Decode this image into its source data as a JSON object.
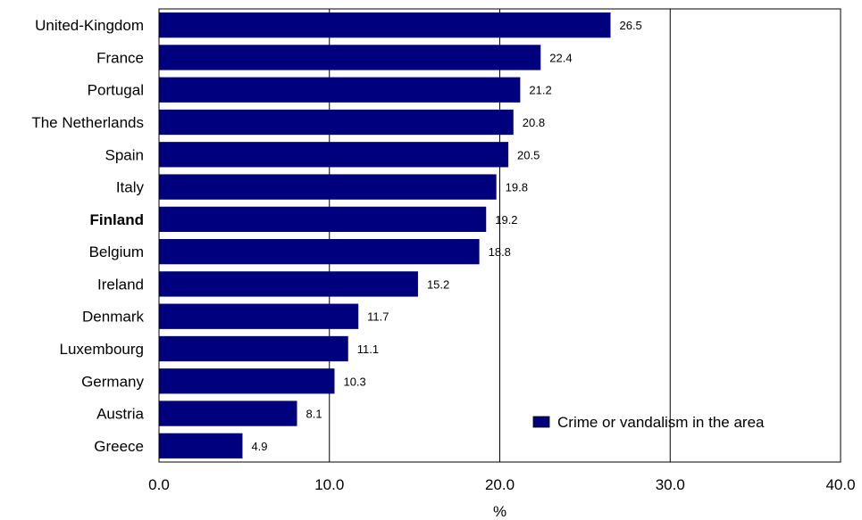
{
  "chart_data": {
    "type": "bar",
    "orientation": "horizontal",
    "categories": [
      "United-Kingdom",
      "France",
      "Portugal",
      "The Netherlands",
      "Spain",
      "Italy",
      "Finland",
      "Belgium",
      "Ireland",
      "Denmark",
      "Luxembourg",
      "Germany",
      "Austria",
      "Greece"
    ],
    "highlight_category": "Finland",
    "series": [
      {
        "name": "Crime or vandalism in the area",
        "color": "#00007f",
        "values": [
          26.5,
          22.4,
          21.2,
          20.8,
          20.5,
          19.8,
          19.2,
          18.8,
          15.2,
          11.7,
          11.1,
          10.3,
          8.1,
          4.9
        ]
      }
    ],
    "value_labels": [
      "26.5",
      "22.4",
      "21.2",
      "20.8",
      "20.5",
      "19.8",
      "19.2",
      "18.8",
      "15.2",
      "11.7",
      "11.1",
      "10.3",
      "8.1",
      "4.9"
    ],
    "xlim": [
      0,
      40
    ],
    "xticks": [
      0,
      10,
      20,
      30,
      40
    ],
    "xtick_labels": [
      "0.0",
      "10.0",
      "20.0",
      "30.0",
      "40.0"
    ],
    "xlabel": "%",
    "grid": "vertical",
    "legend": {
      "placement": "bottom-right",
      "label": "Crime or vandalism in the area"
    }
  }
}
